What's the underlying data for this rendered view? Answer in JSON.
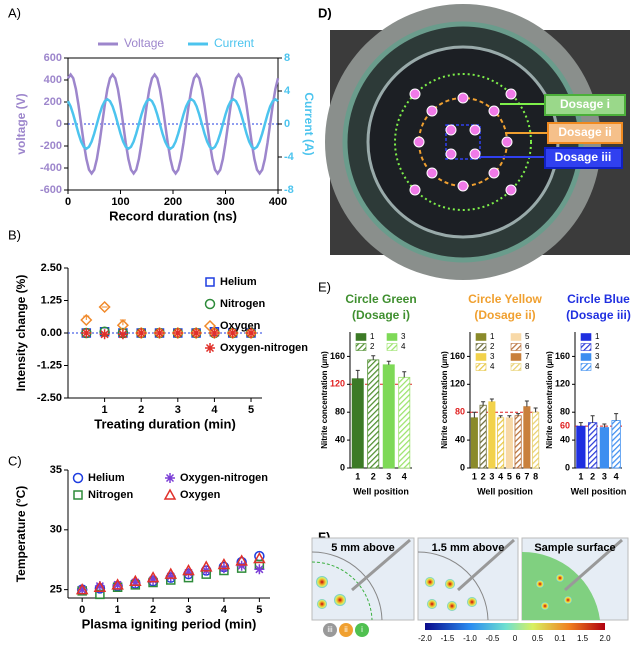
{
  "chart_data": [
    {
      "type": "line",
      "panel": "A)",
      "x": [
        0,
        5,
        10,
        15,
        20,
        25,
        30,
        35,
        40,
        45,
        50,
        55,
        60,
        65,
        70,
        75,
        80,
        85,
        90,
        95,
        100,
        105,
        110,
        115,
        120,
        125,
        130,
        135,
        140,
        145,
        150,
        155,
        160,
        165,
        170,
        175,
        180,
        185,
        190,
        195,
        200,
        205,
        210,
        215,
        220,
        225,
        230,
        235,
        240,
        245,
        250,
        255,
        260,
        265,
        270,
        275,
        280,
        285,
        290,
        295,
        300,
        305,
        310,
        315,
        320,
        325,
        330,
        335,
        340,
        345,
        350,
        355,
        360,
        365,
        370,
        375,
        380,
        385,
        390,
        395,
        400
      ],
      "xlim": [
        0,
        400
      ],
      "xticks": [
        0,
        100,
        200,
        300,
        400
      ],
      "ylim": [
        -600,
        600
      ],
      "yticks": [
        -600,
        -400,
        -200,
        0,
        200,
        400,
        600
      ],
      "y2lim": [
        -8,
        8
      ],
      "y2ticks": [
        -8,
        -4,
        0,
        4,
        8
      ],
      "xlabel": "Record duration (ns)",
      "ylabel": "voltage (V)",
      "y2label": "Current (A)",
      "zero_line": true,
      "series": [
        {
          "name": "Voltage",
          "color": "#9d86cc",
          "values": [
            416,
            450,
            416,
            318,
            172,
            0,
            -172,
            -318,
            -416,
            -450,
            -416,
            -318,
            -172,
            0,
            172,
            318,
            416,
            450,
            416,
            318,
            172,
            0,
            -172,
            -318,
            -416,
            -450,
            -416,
            -318,
            -172,
            0,
            172,
            318,
            416,
            450,
            416,
            318,
            172,
            0,
            -172,
            -318,
            -416,
            -450,
            -416,
            -318,
            -172,
            0,
            172,
            318,
            416,
            450,
            416,
            318,
            172,
            0,
            -172,
            -318,
            -416,
            -450,
            -416,
            -318,
            -172,
            0,
            172,
            318,
            416,
            450,
            416,
            318,
            172,
            0,
            -172,
            -318,
            -416,
            -450,
            -416,
            -318,
            -172,
            0,
            172,
            318,
            416
          ]
        },
        {
          "name": "Current",
          "color": "#4cc4ee",
          "axis": "y2",
          "values": [
            2.77,
            2.12,
            1.15,
            0,
            -1.15,
            -2.12,
            -2.77,
            -3,
            -2.77,
            -2.12,
            -1.15,
            0,
            1.15,
            2.12,
            2.77,
            3,
            2.77,
            2.12,
            1.15,
            0,
            -1.15,
            -2.12,
            -2.77,
            -3,
            -2.77,
            -2.12,
            -1.15,
            0,
            1.15,
            2.12,
            2.77,
            3,
            2.77,
            2.12,
            1.15,
            0,
            -1.15,
            -2.12,
            -2.77,
            -3,
            -2.77,
            -2.12,
            -1.15,
            0,
            1.15,
            2.12,
            2.77,
            3,
            2.77,
            2.12,
            1.15,
            0,
            -1.15,
            -2.12,
            -2.77,
            -3,
            -2.77,
            -2.12,
            -1.15,
            0,
            1.15,
            2.12,
            2.77,
            3,
            2.77,
            2.12,
            1.15,
            0,
            -1.15,
            -2.12,
            -2.77,
            -3,
            -2.77,
            -2.12,
            -1.15,
            0,
            1.15,
            2.12,
            2.77,
            3,
            2.77
          ]
        }
      ]
    },
    {
      "type": "scatter",
      "panel": "B)",
      "legend": "right",
      "x": [
        0.5,
        1,
        1.5,
        2,
        2.5,
        3,
        3.5,
        4,
        4.5,
        5
      ],
      "xlim": [
        0,
        5.3
      ],
      "xticks": [
        1,
        2,
        3,
        4,
        5
      ],
      "ylim": [
        -2.5,
        2.5
      ],
      "yticks": [
        {
          "value": -2.5,
          "label": "-2.50"
        },
        {
          "value": -1.25,
          "label": "-1.25"
        },
        {
          "value": 0,
          "label": "0.00"
        },
        {
          "value": 1.25,
          "label": "1.25"
        },
        {
          "value": 2.5,
          "label": "2.50"
        }
      ],
      "xlabel": "Treating duration (min)",
      "ylabel": "Intensity change (%)",
      "zero_line": true,
      "series": [
        {
          "name": "Helium",
          "color": "#1f3de0",
          "marker": "square",
          "values": [
            0,
            0.05,
            0,
            0,
            0,
            0,
            0,
            0.05,
            0,
            0
          ]
        },
        {
          "name": "Nitrogen",
          "color": "#2e8b3a",
          "marker": "circle",
          "values": [
            0,
            0.05,
            0,
            0,
            0,
            0,
            0,
            0,
            0,
            0
          ]
        },
        {
          "name": "Oxygen",
          "color": "#f0892a",
          "marker": "diamond",
          "values": [
            0.5,
            1.0,
            0.3,
            0,
            0,
            0,
            0,
            0,
            0,
            0
          ],
          "errors": [
            0.15,
            0,
            0.2,
            0,
            0,
            0,
            0,
            0,
            0,
            0
          ]
        },
        {
          "name": "Oxygen-nitrogen",
          "color": "#e0302a",
          "marker": "asterisk",
          "values": [
            0,
            -0.05,
            -0.05,
            0,
            0,
            0,
            0,
            0,
            0,
            0
          ]
        }
      ]
    },
    {
      "type": "scatter",
      "panel": "C)",
      "legend": "top-left",
      "x": [
        0,
        0.5,
        1,
        1.5,
        2,
        2.5,
        3,
        3.5,
        4,
        4.5,
        5
      ],
      "xlim": [
        -0.4,
        5.3
      ],
      "xticks": [
        0,
        1,
        2,
        3,
        4,
        5
      ],
      "ylim": [
        24.3,
        35
      ],
      "yticks": [
        25,
        30,
        35
      ],
      "xlabel": "Plasma igniting period (min)",
      "ylabel": "Temperature (°C)",
      "series": [
        {
          "name": "Helium",
          "color": "#1f3de0",
          "marker": "circle",
          "values": [
            25,
            25.1,
            25.3,
            25.5,
            25.7,
            26,
            26.3,
            26.6,
            26.9,
            27.3,
            27.8
          ]
        },
        {
          "name": "Nitrogen",
          "color": "#2e8b3a",
          "marker": "square",
          "values": [
            24.9,
            24.6,
            25.2,
            25.4,
            25.6,
            25.8,
            26,
            26.3,
            26.6,
            26.8,
            27.1
          ]
        },
        {
          "name": "Oxygen-nitrogen",
          "color": "#7b3fd6",
          "marker": "asterisk",
          "values": [
            25,
            25.3,
            25.4,
            25.6,
            25.8,
            26.1,
            26.4,
            26.6,
            26.8,
            27,
            26.7
          ]
        },
        {
          "name": "Oxygen",
          "color": "#e0302a",
          "marker": "triangle",
          "values": [
            25,
            25.2,
            25.4,
            25.7,
            26,
            26.3,
            26.6,
            26.9,
            27.1,
            27.4,
            27.6
          ]
        }
      ]
    },
    {
      "type": "bar",
      "panel": "E)",
      "title": "Circle Green",
      "subtitle": "(Dosage i)",
      "title_color": "#3f8f2f",
      "categories": [
        "1",
        "2",
        "3",
        "4"
      ],
      "values": [
        128,
        155,
        148,
        130
      ],
      "errors": [
        12,
        6,
        5,
        8
      ],
      "colors": [
        "#3c7a26",
        "#4f8f2f",
        "#7ed957",
        "#9be36b"
      ],
      "hatched": [
        false,
        true,
        false,
        true
      ],
      "legend_columns": 2,
      "ref": 120,
      "ref_color": "#e02020",
      "ylim": [
        0,
        195
      ],
      "yticks": [
        0,
        40,
        80,
        120,
        160
      ],
      "xlabel": "Well position",
      "ylabel": "Nitrite concentration (µm)"
    },
    {
      "type": "bar",
      "title": "Circle Yellow",
      "subtitle": "(Dosage ii)",
      "title_color": "#f0a030",
      "categories": [
        "1",
        "2",
        "3",
        "4",
        "5",
        "6",
        "7",
        "8"
      ],
      "values": [
        72,
        90,
        95,
        72,
        72,
        75,
        88,
        80
      ],
      "errors": [
        8,
        5,
        4,
        3,
        3,
        3,
        8,
        6
      ],
      "colors": [
        "#8a8a2a",
        "#6b6b3a",
        "#f2d24b",
        "#e8c84a",
        "#f8d9a8",
        "#b8703a",
        "#c9803c",
        "#e8d070"
      ],
      "hatched": [
        false,
        true,
        false,
        true,
        false,
        true,
        false,
        true
      ],
      "legend_columns": 2,
      "ref": 80,
      "ref_color": "#e02020",
      "ylim": [
        0,
        195
      ],
      "yticks": [
        0,
        40,
        80,
        120,
        160
      ],
      "xlabel": "Well position",
      "ylabel": "Nitrite concentration (µm)"
    },
    {
      "type": "bar",
      "title": "Circle Blue",
      "subtitle": "(Dosage iii)",
      "title_color": "#2030e0",
      "categories": [
        "1",
        "2",
        "3",
        "4"
      ],
      "values": [
        60,
        65,
        58,
        68
      ],
      "errors": [
        5,
        10,
        5,
        10
      ],
      "colors": [
        "#1f2fe0",
        "#2a3ad8",
        "#3d8ef0",
        "#3d8ef0"
      ],
      "hatched": [
        false,
        true,
        false,
        true
      ],
      "legend_columns": 1,
      "ref": 60,
      "ref_color": "#e02020",
      "ylim": [
        0,
        195
      ],
      "yticks": [
        0,
        40,
        80,
        120,
        160
      ],
      "xlabel": "Well position",
      "ylabel": "Nitrite concentration (µm)"
    }
  ],
  "photo": {
    "panel": "D)",
    "callouts": [
      "Dosage i",
      "Dosage ii",
      "Dosage iii"
    ]
  },
  "simulation": {
    "panel": "F)",
    "views": [
      "5 mm above",
      "1.5 mm above",
      "Sample surface"
    ],
    "colorbar_labels": [
      "-2.0",
      "-1.5",
      "-1.0",
      "-0.5",
      "0",
      "0.5",
      "0.1",
      "1.5",
      "2.0"
    ],
    "rings": [
      "iii",
      "ii",
      "i"
    ]
  }
}
